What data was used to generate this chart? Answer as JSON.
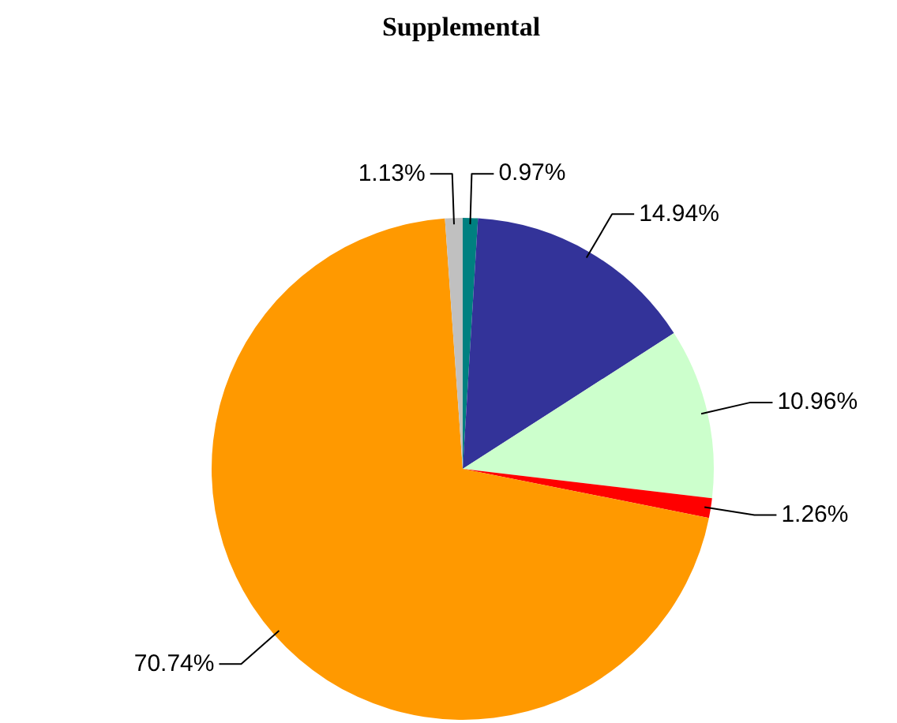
{
  "chart_data": {
    "type": "pie",
    "title": "Supplemental",
    "categories": [
      null,
      null,
      null,
      null,
      null,
      null
    ],
    "values": [
      0.97,
      14.94,
      10.96,
      1.26,
      70.74,
      1.13
    ],
    "colors": [
      "#008080",
      "#333399",
      "#ccffcc",
      "#ff0000",
      "#ff9900",
      "#c0c0c0"
    ],
    "value_labels": [
      "0.97%",
      "14.94%",
      "10.96%",
      "1.26%",
      "70.74%",
      "1.13%"
    ],
    "legend": false
  }
}
